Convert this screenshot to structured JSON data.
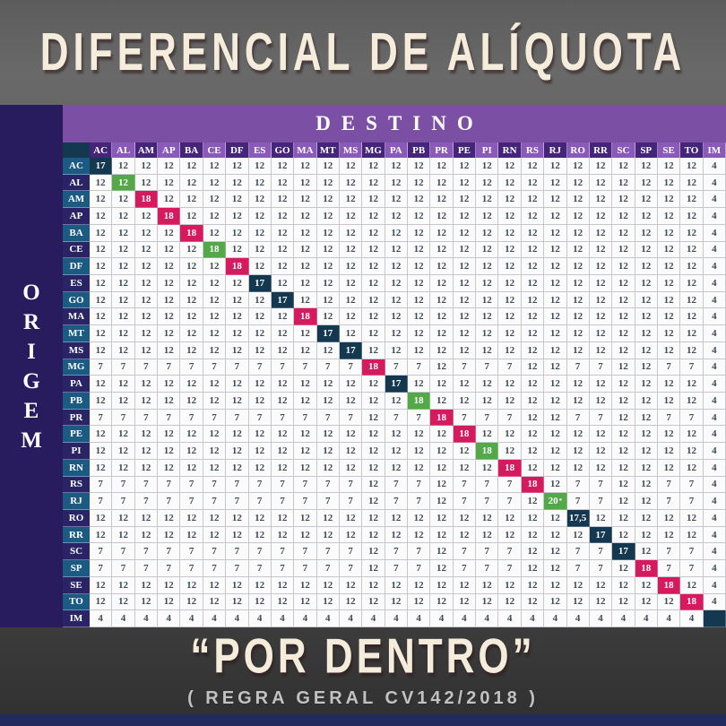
{
  "title": "DIFERENCIAL DE ALÍQUOTA",
  "axes": {
    "destino": "DESTINO",
    "origem": "ORIGEM"
  },
  "footer": {
    "quote": "“POR DENTRO”",
    "rule": "( REGRA GERAL CV142/2018 )"
  },
  "colors": {
    "destino_band": "#7b4fa3",
    "col_header_dark": "#45257a",
    "col_header_light": "#8a5ab8",
    "row_header_teal": "#1b5a82",
    "row_header_navy": "#2a2366",
    "origem_sidebar": "#291c5e",
    "diag_navy": "#143850",
    "diag_red": "#d61a5e",
    "diag_green": "#53a948",
    "title_cream": "#f5ecdc",
    "bottom_bar": "#232a5e"
  },
  "chart_data": {
    "type": "table",
    "title": "DIFERENCIAL DE ALÍQUOTA",
    "row_axis_label": "ORIGEM",
    "col_axis_label": "DESTINO",
    "note_quote": "“POR DENTRO”",
    "note_rule": "( REGRA GERAL CV142/2018 )",
    "states": [
      "AC",
      "AL",
      "AM",
      "AP",
      "BA",
      "CE",
      "DF",
      "ES",
      "GO",
      "MA",
      "MT",
      "MS",
      "MG",
      "PA",
      "PB",
      "PR",
      "PE",
      "PI",
      "RN",
      "RS",
      "RJ",
      "RO",
      "RR",
      "SC",
      "SP",
      "SE",
      "TO",
      "IM"
    ],
    "diagonal_styles": [
      "navy",
      "green",
      "red",
      "red",
      "red",
      "green",
      "red",
      "navy",
      "navy",
      "red",
      "navy",
      "navy",
      "red",
      "navy",
      "green",
      "red",
      "red",
      "green",
      "red",
      "red",
      "green",
      "navy",
      "navy",
      "navy",
      "red",
      "red",
      "red",
      "navy"
    ],
    "matrix": [
      [
        "17",
        "12",
        "12",
        "12",
        "12",
        "12",
        "12",
        "12",
        "12",
        "12",
        "12",
        "12",
        "12",
        "12",
        "12",
        "12",
        "12",
        "12",
        "12",
        "12",
        "12",
        "12",
        "12",
        "12",
        "12",
        "12",
        "12",
        "4"
      ],
      [
        "12",
        "12",
        "12",
        "12",
        "12",
        "12",
        "12",
        "12",
        "12",
        "12",
        "12",
        "12",
        "12",
        "12",
        "12",
        "12",
        "12",
        "12",
        "12",
        "12",
        "12",
        "12",
        "12",
        "12",
        "12",
        "12",
        "12",
        "4"
      ],
      [
        "12",
        "12",
        "18",
        "12",
        "12",
        "12",
        "12",
        "12",
        "12",
        "12",
        "12",
        "12",
        "12",
        "12",
        "12",
        "12",
        "12",
        "12",
        "12",
        "12",
        "12",
        "12",
        "12",
        "12",
        "12",
        "12",
        "12",
        "4"
      ],
      [
        "12",
        "12",
        "12",
        "18",
        "12",
        "12",
        "12",
        "12",
        "12",
        "12",
        "12",
        "12",
        "12",
        "12",
        "12",
        "12",
        "12",
        "12",
        "12",
        "12",
        "12",
        "12",
        "12",
        "12",
        "12",
        "12",
        "12",
        "4"
      ],
      [
        "12",
        "12",
        "12",
        "12",
        "18",
        "12",
        "12",
        "12",
        "12",
        "12",
        "12",
        "12",
        "12",
        "12",
        "12",
        "12",
        "12",
        "12",
        "12",
        "12",
        "12",
        "12",
        "12",
        "12",
        "12",
        "12",
        "12",
        "4"
      ],
      [
        "12",
        "12",
        "12",
        "12",
        "12",
        "18",
        "12",
        "12",
        "12",
        "12",
        "12",
        "12",
        "12",
        "12",
        "12",
        "12",
        "12",
        "12",
        "12",
        "12",
        "12",
        "12",
        "12",
        "12",
        "12",
        "12",
        "12",
        "4"
      ],
      [
        "12",
        "12",
        "12",
        "12",
        "12",
        "12",
        "18",
        "12",
        "12",
        "12",
        "12",
        "12",
        "12",
        "12",
        "12",
        "12",
        "12",
        "12",
        "12",
        "12",
        "12",
        "12",
        "12",
        "12",
        "12",
        "12",
        "12",
        "4"
      ],
      [
        "12",
        "12",
        "12",
        "12",
        "12",
        "12",
        "12",
        "17",
        "12",
        "12",
        "12",
        "12",
        "12",
        "12",
        "12",
        "12",
        "12",
        "12",
        "12",
        "12",
        "12",
        "12",
        "12",
        "12",
        "12",
        "12",
        "12",
        "4"
      ],
      [
        "12",
        "12",
        "12",
        "12",
        "12",
        "12",
        "12",
        "12",
        "17",
        "12",
        "12",
        "12",
        "12",
        "12",
        "12",
        "12",
        "12",
        "12",
        "12",
        "12",
        "12",
        "12",
        "12",
        "12",
        "12",
        "12",
        "12",
        "4"
      ],
      [
        "12",
        "12",
        "12",
        "12",
        "12",
        "12",
        "12",
        "12",
        "12",
        "18",
        "12",
        "12",
        "12",
        "12",
        "12",
        "12",
        "12",
        "12",
        "12",
        "12",
        "12",
        "12",
        "12",
        "12",
        "12",
        "12",
        "12",
        "4"
      ],
      [
        "12",
        "12",
        "12",
        "12",
        "12",
        "12",
        "12",
        "12",
        "12",
        "12",
        "17",
        "12",
        "12",
        "12",
        "12",
        "12",
        "12",
        "12",
        "12",
        "12",
        "12",
        "12",
        "12",
        "12",
        "12",
        "12",
        "12",
        "4"
      ],
      [
        "12",
        "12",
        "12",
        "12",
        "12",
        "12",
        "12",
        "12",
        "12",
        "12",
        "12",
        "17",
        "12",
        "12",
        "12",
        "12",
        "12",
        "12",
        "12",
        "12",
        "12",
        "12",
        "12",
        "12",
        "12",
        "12",
        "12",
        "4"
      ],
      [
        "7",
        "7",
        "7",
        "7",
        "7",
        "7",
        "7",
        "7",
        "7",
        "7",
        "7",
        "7",
        "18",
        "7",
        "7",
        "12",
        "7",
        "7",
        "7",
        "12",
        "12",
        "7",
        "7",
        "12",
        "12",
        "7",
        "7",
        "4"
      ],
      [
        "12",
        "12",
        "12",
        "12",
        "12",
        "12",
        "12",
        "12",
        "12",
        "12",
        "12",
        "12",
        "12",
        "17",
        "12",
        "12",
        "12",
        "12",
        "12",
        "12",
        "12",
        "12",
        "12",
        "12",
        "12",
        "12",
        "12",
        "4"
      ],
      [
        "12",
        "12",
        "12",
        "12",
        "12",
        "12",
        "12",
        "12",
        "12",
        "12",
        "12",
        "12",
        "12",
        "12",
        "18",
        "12",
        "12",
        "12",
        "12",
        "12",
        "12",
        "12",
        "12",
        "12",
        "12",
        "12",
        "12",
        "4"
      ],
      [
        "7",
        "7",
        "7",
        "7",
        "7",
        "7",
        "7",
        "7",
        "7",
        "7",
        "7",
        "7",
        "12",
        "7",
        "7",
        "18",
        "7",
        "7",
        "7",
        "12",
        "12",
        "7",
        "7",
        "12",
        "12",
        "7",
        "7",
        "4"
      ],
      [
        "12",
        "12",
        "12",
        "12",
        "12",
        "12",
        "12",
        "12",
        "12",
        "12",
        "12",
        "12",
        "12",
        "12",
        "12",
        "12",
        "18",
        "12",
        "12",
        "12",
        "12",
        "12",
        "12",
        "12",
        "12",
        "12",
        "12",
        "4"
      ],
      [
        "12",
        "12",
        "12",
        "12",
        "12",
        "12",
        "12",
        "12",
        "12",
        "12",
        "12",
        "12",
        "12",
        "12",
        "12",
        "12",
        "12",
        "18",
        "12",
        "12",
        "12",
        "12",
        "12",
        "12",
        "12",
        "12",
        "12",
        "4"
      ],
      [
        "12",
        "12",
        "12",
        "12",
        "12",
        "12",
        "12",
        "12",
        "12",
        "12",
        "12",
        "12",
        "12",
        "12",
        "12",
        "12",
        "12",
        "12",
        "18",
        "12",
        "12",
        "12",
        "12",
        "12",
        "12",
        "12",
        "12",
        "4"
      ],
      [
        "7",
        "7",
        "7",
        "7",
        "7",
        "7",
        "7",
        "7",
        "7",
        "7",
        "7",
        "7",
        "12",
        "7",
        "7",
        "12",
        "7",
        "7",
        "7",
        "18",
        "12",
        "7",
        "7",
        "12",
        "12",
        "7",
        "7",
        "4"
      ],
      [
        "7",
        "7",
        "7",
        "7",
        "7",
        "7",
        "7",
        "7",
        "7",
        "7",
        "7",
        "7",
        "12",
        "7",
        "7",
        "12",
        "7",
        "7",
        "7",
        "12",
        "20*",
        "7",
        "7",
        "12",
        "12",
        "7",
        "7",
        "4"
      ],
      [
        "12",
        "12",
        "12",
        "12",
        "12",
        "12",
        "12",
        "12",
        "12",
        "12",
        "12",
        "12",
        "12",
        "12",
        "12",
        "12",
        "12",
        "12",
        "12",
        "12",
        "12",
        "17,5",
        "12",
        "12",
        "12",
        "12",
        "12",
        "4"
      ],
      [
        "12",
        "12",
        "12",
        "12",
        "12",
        "12",
        "12",
        "12",
        "12",
        "12",
        "12",
        "12",
        "12",
        "12",
        "12",
        "12",
        "12",
        "12",
        "12",
        "12",
        "12",
        "12",
        "17",
        "12",
        "12",
        "12",
        "12",
        "4"
      ],
      [
        "7",
        "7",
        "7",
        "7",
        "7",
        "7",
        "7",
        "7",
        "7",
        "7",
        "7",
        "7",
        "12",
        "7",
        "7",
        "12",
        "7",
        "7",
        "7",
        "12",
        "12",
        "7",
        "7",
        "17",
        "12",
        "7",
        "7",
        "4"
      ],
      [
        "7",
        "7",
        "7",
        "7",
        "7",
        "7",
        "7",
        "7",
        "7",
        "7",
        "7",
        "7",
        "12",
        "7",
        "7",
        "12",
        "7",
        "7",
        "7",
        "12",
        "12",
        "7",
        "7",
        "12",
        "18",
        "7",
        "7",
        "4"
      ],
      [
        "12",
        "12",
        "12",
        "12",
        "12",
        "12",
        "12",
        "12",
        "12",
        "12",
        "12",
        "12",
        "12",
        "12",
        "12",
        "12",
        "12",
        "12",
        "12",
        "12",
        "12",
        "12",
        "12",
        "12",
        "12",
        "18",
        "12",
        "4"
      ],
      [
        "12",
        "12",
        "12",
        "12",
        "12",
        "12",
        "12",
        "12",
        "12",
        "12",
        "12",
        "12",
        "12",
        "12",
        "12",
        "12",
        "12",
        "12",
        "12",
        "12",
        "12",
        "12",
        "12",
        "12",
        "12",
        "12",
        "18",
        "4"
      ],
      [
        "4",
        "4",
        "4",
        "4",
        "4",
        "4",
        "4",
        "4",
        "4",
        "4",
        "4",
        "4",
        "4",
        "4",
        "4",
        "4",
        "4",
        "4",
        "4",
        "4",
        "4",
        "4",
        "4",
        "4",
        "4",
        "4",
        "4",
        ""
      ]
    ]
  }
}
